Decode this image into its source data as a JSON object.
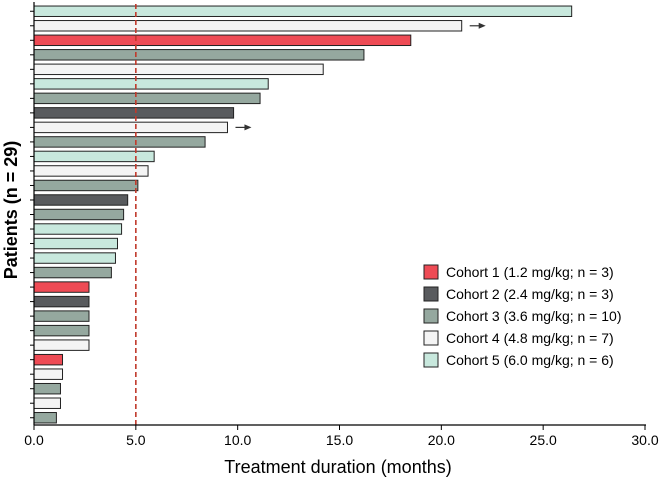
{
  "chart_data": {
    "type": "bar",
    "orientation": "horizontal",
    "xlabel": "Treatment duration (months)",
    "ylabel": "Patients (n = 29)",
    "xlim": [
      0,
      30
    ],
    "xticks": [
      "0.0",
      "5.0",
      "10.0",
      "15.0",
      "20.0",
      "25.0",
      "30.0"
    ],
    "reference_line": {
      "x": 5.0,
      "style": "dashed",
      "color": "#c0392b"
    },
    "grid": false,
    "legend_position": "lower-right",
    "series": [
      {
        "name": "Cohort 1 (1.2 mg/kg; n = 3)",
        "color": "#ee4b55"
      },
      {
        "name": "Cohort 2 (2.4 mg/kg; n = 3)",
        "color": "#595b5e"
      },
      {
        "name": "Cohort 3 (3.6 mg/kg; n = 10)",
        "color": "#95a89f"
      },
      {
        "name": "Cohort 4 (4.8 mg/kg; n = 7)",
        "color": "#f4f4f4"
      },
      {
        "name": "Cohort 5 (6.0 mg/kg; n = 6)",
        "color": "#c8e8dd"
      }
    ],
    "bars": [
      {
        "cohort": 5,
        "value": 26.4,
        "ongoing": false
      },
      {
        "cohort": 4,
        "value": 21.0,
        "ongoing": true
      },
      {
        "cohort": 1,
        "value": 18.5,
        "ongoing": false
      },
      {
        "cohort": 3,
        "value": 16.2,
        "ongoing": false
      },
      {
        "cohort": 4,
        "value": 14.2,
        "ongoing": false
      },
      {
        "cohort": 5,
        "value": 11.5,
        "ongoing": false
      },
      {
        "cohort": 3,
        "value": 11.1,
        "ongoing": false
      },
      {
        "cohort": 2,
        "value": 9.8,
        "ongoing": false
      },
      {
        "cohort": 4,
        "value": 9.5,
        "ongoing": true
      },
      {
        "cohort": 3,
        "value": 8.4,
        "ongoing": false
      },
      {
        "cohort": 5,
        "value": 5.9,
        "ongoing": false
      },
      {
        "cohort": 4,
        "value": 5.6,
        "ongoing": false
      },
      {
        "cohort": 3,
        "value": 5.1,
        "ongoing": false
      },
      {
        "cohort": 2,
        "value": 4.6,
        "ongoing": false
      },
      {
        "cohort": 3,
        "value": 4.4,
        "ongoing": false
      },
      {
        "cohort": 5,
        "value": 4.3,
        "ongoing": false
      },
      {
        "cohort": 5,
        "value": 4.1,
        "ongoing": false
      },
      {
        "cohort": 5,
        "value": 4.0,
        "ongoing": false
      },
      {
        "cohort": 3,
        "value": 3.8,
        "ongoing": false
      },
      {
        "cohort": 1,
        "value": 2.7,
        "ongoing": false
      },
      {
        "cohort": 2,
        "value": 2.7,
        "ongoing": false
      },
      {
        "cohort": 3,
        "value": 2.7,
        "ongoing": false
      },
      {
        "cohort": 3,
        "value": 2.7,
        "ongoing": false
      },
      {
        "cohort": 4,
        "value": 2.7,
        "ongoing": false
      },
      {
        "cohort": 1,
        "value": 1.4,
        "ongoing": false
      },
      {
        "cohort": 4,
        "value": 1.4,
        "ongoing": false
      },
      {
        "cohort": 3,
        "value": 1.3,
        "ongoing": false
      },
      {
        "cohort": 4,
        "value": 1.3,
        "ongoing": false
      },
      {
        "cohort": 3,
        "value": 1.1,
        "ongoing": false
      }
    ]
  }
}
